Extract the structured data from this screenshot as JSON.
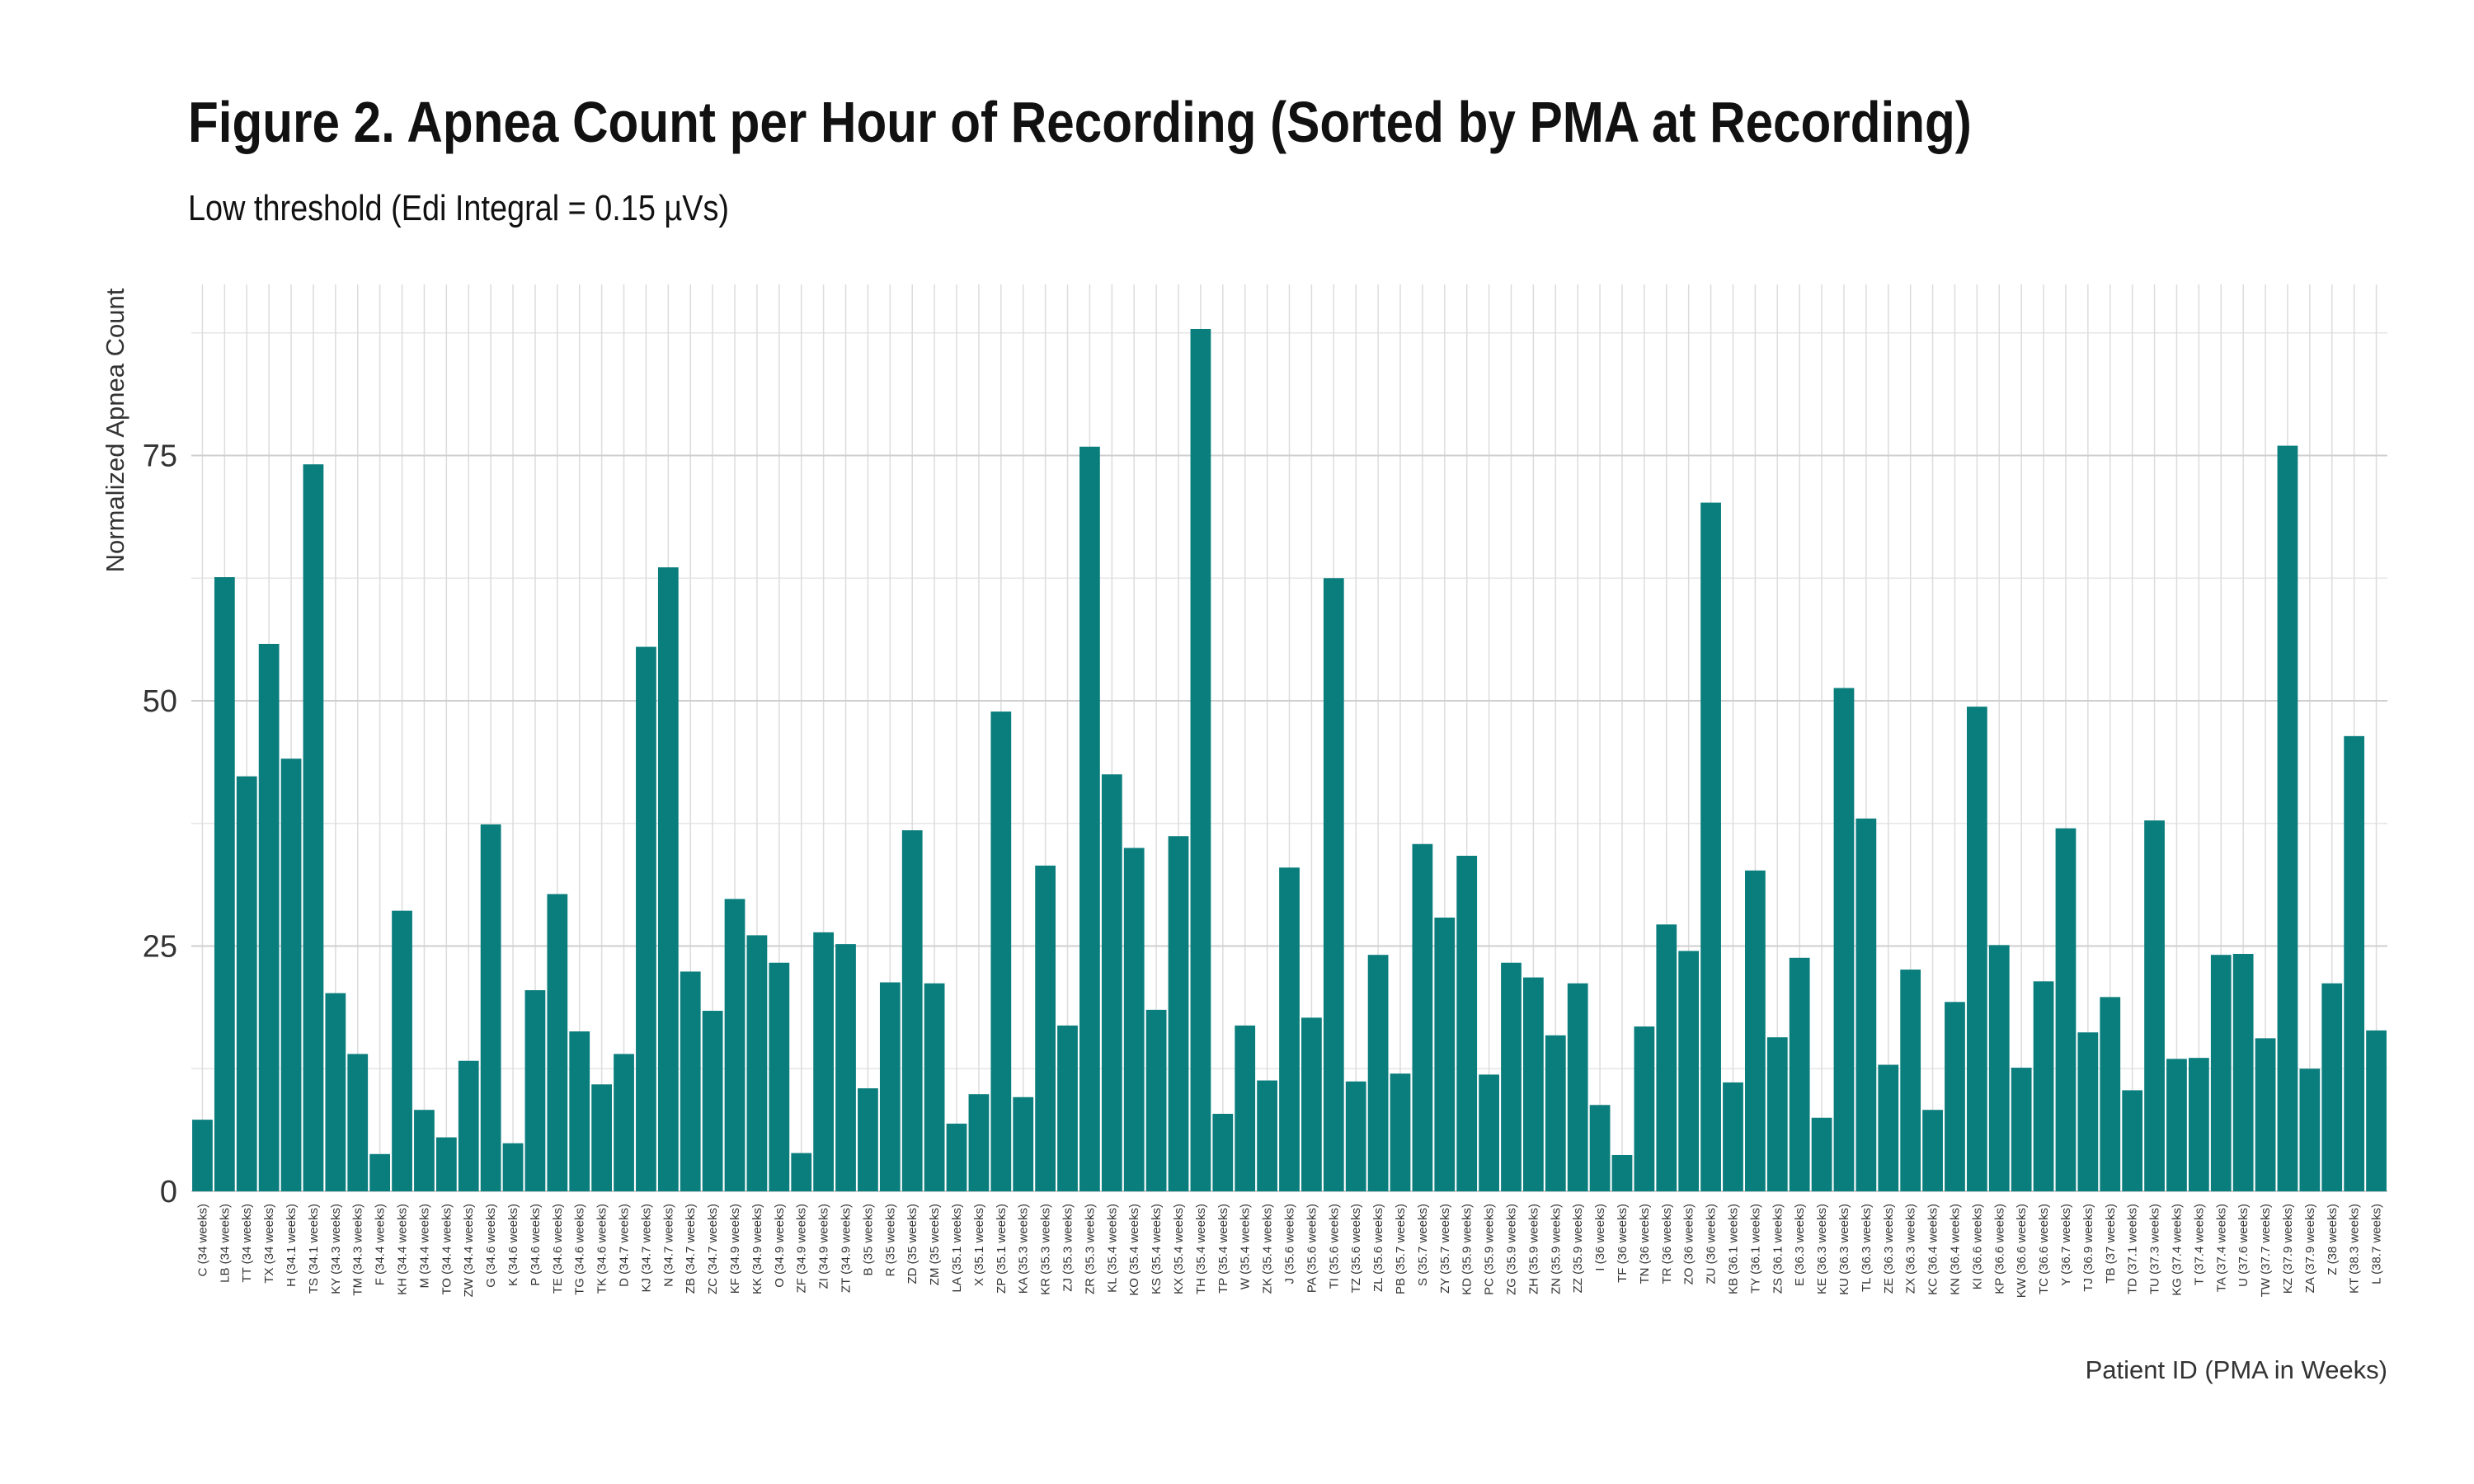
{
  "title": "Figure 2. Apnea Count per Hour of Recording (Sorted by PMA at Recording)",
  "subtitle": "Low threshold (Edi Integral = 0.15 µVs)",
  "chart_data": {
    "type": "bar",
    "xlabel": "Patient ID (PMA in Weeks)",
    "ylabel": "Normalized Apnea Count",
    "ylim": [
      0,
      88
    ],
    "yticks": [
      0,
      25,
      50,
      75
    ],
    "grid": true,
    "bar_color": "#0a7d7d",
    "categories": [
      "C (34 weeks)",
      "LB (34 weeks)",
      "TT (34 weeks)",
      "TX (34 weeks)",
      "H (34.1 weeks)",
      "TS (34.1 weeks)",
      "KY (34.3 weeks)",
      "TM (34.3 weeks)",
      "F (34.4 weeks)",
      "KH (34.4 weeks)",
      "M (34.4 weeks)",
      "TO (34.4 weeks)",
      "ZW (34.4 weeks)",
      "G (34.6 weeks)",
      "K (34.6 weeks)",
      "P (34.6 weeks)",
      "TE (34.6 weeks)",
      "TG (34.6 weeks)",
      "TK (34.6 weeks)",
      "D (34.7 weeks)",
      "KJ (34.7 weeks)",
      "N (34.7 weeks)",
      "ZB (34.7 weeks)",
      "ZC (34.7 weeks)",
      "KF (34.9 weeks)",
      "KK (34.9 weeks)",
      "O (34.9 weeks)",
      "ZF (34.9 weeks)",
      "ZI (34.9 weeks)",
      "ZT (34.9 weeks)",
      "B (35 weeks)",
      "R (35 weeks)",
      "ZD (35 weeks)",
      "ZM (35 weeks)",
      "LA (35.1 weeks)",
      "X (35.1 weeks)",
      "ZP (35.1 weeks)",
      "KA (35.3 weeks)",
      "KR (35.3 weeks)",
      "ZJ (35.3 weeks)",
      "ZR (35.3 weeks)",
      "KL (35.4 weeks)",
      "KO (35.4 weeks)",
      "KS (35.4 weeks)",
      "KX (35.4 weeks)",
      "TH (35.4 weeks)",
      "TP (35.4 weeks)",
      "W (35.4 weeks)",
      "ZK (35.4 weeks)",
      "J (35.6 weeks)",
      "PA (35.6 weeks)",
      "TI (35.6 weeks)",
      "TZ (35.6 weeks)",
      "ZL (35.6 weeks)",
      "PB (35.7 weeks)",
      "S (35.7 weeks)",
      "ZY (35.7 weeks)",
      "KD (35.9 weeks)",
      "PC (35.9 weeks)",
      "ZG (35.9 weeks)",
      "ZH (35.9 weeks)",
      "ZN (35.9 weeks)",
      "ZZ (35.9 weeks)",
      "I (36 weeks)",
      "TF (36 weeks)",
      "TN (36 weeks)",
      "TR (36 weeks)",
      "ZO (36 weeks)",
      "ZU (36 weeks)",
      "KB (36.1 weeks)",
      "TY (36.1 weeks)",
      "ZS (36.1 weeks)",
      "E (36.3 weeks)",
      "KE (36.3 weeks)",
      "KU (36.3 weeks)",
      "TL (36.3 weeks)",
      "ZE (36.3 weeks)",
      "ZX (36.3 weeks)",
      "KC (36.4 weeks)",
      "KN (36.4 weeks)",
      "KI (36.6 weeks)",
      "KP (36.6 weeks)",
      "KW (36.6 weeks)",
      "TC (36.6 weeks)",
      "Y (36.7 weeks)",
      "TJ (36.9 weeks)",
      "TB (37 weeks)",
      "TD (37.1 weeks)",
      "TU (37.3 weeks)",
      "KG (37.4 weeks)",
      "T (37.4 weeks)",
      "TA (37.4 weeks)",
      "U (37.6 weeks)",
      "TW (37.7 weeks)",
      "KZ (37.9 weeks)",
      "ZA (37.9 weeks)",
      "Z (38 weeks)",
      "KT (38.3 weeks)",
      "L (38.7 weeks)"
    ],
    "values": [
      7.3,
      62.6,
      42.3,
      55.8,
      44.1,
      74.1,
      20.2,
      14.0,
      3.8,
      28.6,
      8.3,
      5.5,
      13.3,
      37.4,
      4.9,
      20.5,
      30.3,
      16.3,
      10.9,
      14.0,
      55.5,
      63.6,
      22.4,
      18.4,
      29.8,
      26.1,
      23.3,
      3.9,
      26.4,
      25.2,
      10.5,
      21.3,
      36.8,
      21.2,
      6.9,
      9.9,
      48.9,
      9.6,
      33.2,
      16.9,
      75.9,
      42.5,
      35.0,
      18.5,
      36.2,
      87.9,
      7.9,
      16.9,
      11.3,
      33.0,
      17.7,
      62.5,
      11.2,
      24.1,
      12.0,
      35.4,
      27.9,
      34.2,
      11.9,
      23.3,
      21.8,
      15.9,
      21.2,
      8.8,
      3.7,
      16.8,
      27.2,
      24.5,
      70.2,
      11.1,
      32.7,
      15.7,
      23.8,
      7.5,
      51.3,
      38.0,
      12.9,
      22.6,
      8.3,
      19.3,
      49.4,
      25.1,
      12.6,
      21.4,
      37.0,
      16.2,
      19.8,
      10.3,
      37.8,
      13.5,
      13.6,
      24.1,
      24.2,
      15.6,
      76.0,
      12.5,
      21.2,
      46.4,
      16.4
    ]
  }
}
